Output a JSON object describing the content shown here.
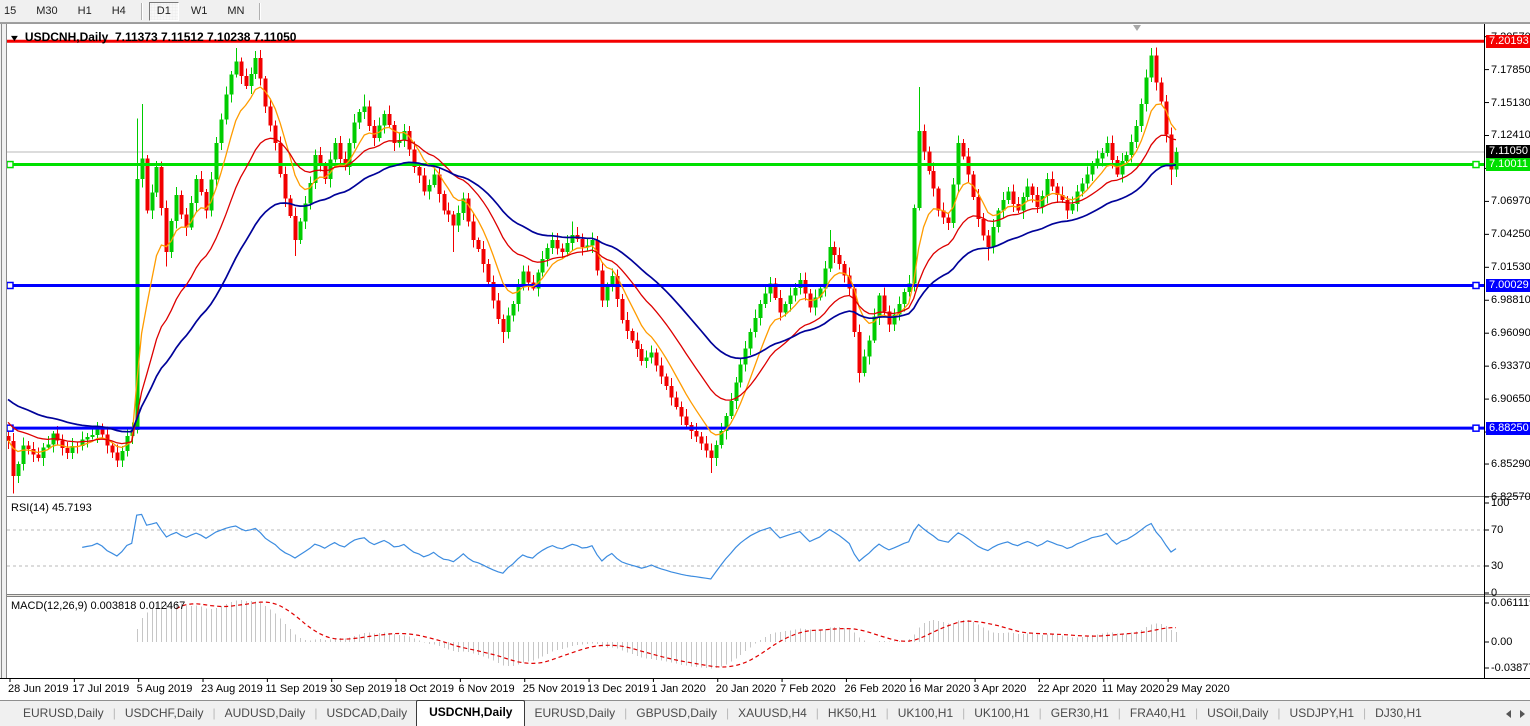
{
  "toolbar": {
    "items": [
      {
        "label": "15",
        "active": false
      },
      {
        "label": "M30",
        "active": false
      },
      {
        "label": "H1",
        "active": false
      },
      {
        "label": "H4",
        "active": false
      },
      {
        "sep": true
      },
      {
        "label": "D1",
        "active": true
      },
      {
        "label": "W1",
        "active": false
      },
      {
        "label": "MN",
        "active": false
      },
      {
        "sep": true
      }
    ]
  },
  "chart_title": {
    "dropdown_icon": "▼",
    "symbol": "USDCNH,Daily",
    "ohlc": "7.11373 7.11512 7.10238 7.11050"
  },
  "chart_data": {
    "type": "candlestick",
    "symbol": "USDCNH",
    "timeframe": "Daily",
    "ohlc_display": {
      "open": "7.11373",
      "high": "7.11512",
      "low": "7.10238",
      "close": "7.11050"
    },
    "price_axis": {
      "ticks": [
        {
          "label": "7.20570",
          "price": 7.2057
        },
        {
          "label": "7.17850",
          "price": 7.1785
        },
        {
          "label": "7.15130",
          "price": 7.1513
        },
        {
          "label": "7.12410",
          "price": 7.1241
        },
        {
          "label": "7.09690",
          "price": 7.0969
        },
        {
          "label": "7.06970",
          "price": 7.0697
        },
        {
          "label": "7.04250",
          "price": 7.0425
        },
        {
          "label": "7.01530",
          "price": 7.0153
        },
        {
          "label": "6.98810",
          "price": 6.9881
        },
        {
          "label": "6.96090",
          "price": 6.9609
        },
        {
          "label": "6.93370",
          "price": 6.9337
        },
        {
          "label": "6.90650",
          "price": 6.9065
        },
        {
          "label": "6.87930",
          "price": 6.8793
        },
        {
          "label": "6.85290",
          "price": 6.8529
        },
        {
          "label": "6.82570",
          "price": 6.8257
        }
      ]
    },
    "hlines": [
      {
        "label": "7.20193",
        "price": 7.20193,
        "color": "#f40000",
        "width": 3,
        "markers": false
      },
      {
        "label": "7.10011",
        "price": 7.10011,
        "color": "#00e000",
        "width": 3,
        "markers": true
      },
      {
        "label": "7.00029",
        "price": 7.00029,
        "color": "#0000ff",
        "width": 3,
        "markers": true
      },
      {
        "label": "6.88250",
        "price": 6.8825,
        "color": "#0000ff",
        "width": 3,
        "markers": true
      }
    ],
    "current_price": {
      "label": "7.11050",
      "price": 7.1105,
      "line_color": "#b8b8b8",
      "label_bg": "#000000",
      "label_fg": "#ffffff"
    },
    "candles": {
      "count": 237,
      "up_color": "#00cc00",
      "down_color": "#f20000",
      "anchors": [
        [
          0,
          6.872
        ],
        [
          1,
          6.843,
          {
            "l": 6.8285
          }
        ],
        [
          3,
          6.868
        ],
        [
          6,
          6.858
        ],
        [
          9,
          6.878
        ],
        [
          12,
          6.862
        ],
        [
          15,
          6.873
        ],
        [
          18,
          6.882
        ],
        [
          20,
          6.868
        ],
        [
          22,
          6.856
        ],
        [
          24,
          6.876
        ],
        [
          25,
          6.881
        ],
        [
          26,
          7.088,
          {
            "h": 7.138
          }
        ],
        [
          27,
          7.105,
          {
            "h": 7.15
          }
        ],
        [
          28,
          7.062
        ],
        [
          30,
          7.098
        ],
        [
          32,
          7.028,
          {
            "l": 7.016
          }
        ],
        [
          34,
          7.075
        ],
        [
          36,
          7.048
        ],
        [
          38,
          7.088
        ],
        [
          40,
          7.062
        ],
        [
          42,
          7.118
        ],
        [
          44,
          7.158
        ],
        [
          46,
          7.185,
          {
            "h": 7.1965
          }
        ],
        [
          48,
          7.165
        ],
        [
          50,
          7.188,
          {
            "h": 7.194
          }
        ],
        [
          52,
          7.148
        ],
        [
          54,
          7.118
        ],
        [
          56,
          7.072
        ],
        [
          58,
          7.038,
          {
            "l": 7.0245
          }
        ],
        [
          60,
          7.068
        ],
        [
          62,
          7.108
        ],
        [
          64,
          7.088
        ],
        [
          66,
          7.118
        ],
        [
          68,
          7.098
        ],
        [
          70,
          7.135
        ],
        [
          72,
          7.148,
          {
            "h": 7.158
          }
        ],
        [
          74,
          7.122
        ],
        [
          76,
          7.142
        ],
        [
          78,
          7.118
        ],
        [
          80,
          7.128
        ],
        [
          82,
          7.098
        ],
        [
          84,
          7.078
        ],
        [
          86,
          7.092
        ],
        [
          88,
          7.062
        ],
        [
          90,
          7.05,
          {
            "l": 7.028
          }
        ],
        [
          92,
          7.072
        ],
        [
          94,
          7.038
        ],
        [
          96,
          7.018
        ],
        [
          98,
          6.988
        ],
        [
          100,
          6.962,
          {
            "l": 6.953
          }
        ],
        [
          102,
          6.985
        ],
        [
          104,
          7.012
        ],
        [
          106,
          6.998
        ],
        [
          108,
          7.022
        ],
        [
          110,
          7.038
        ],
        [
          112,
          7.028
        ],
        [
          114,
          7.042,
          {
            "h": 7.053
          }
        ],
        [
          116,
          7.032
        ],
        [
          118,
          7.038
        ],
        [
          120,
          6.988
        ],
        [
          122,
          7.008
        ],
        [
          124,
          6.972
        ],
        [
          126,
          6.955
        ],
        [
          128,
          6.938
        ],
        [
          130,
          6.945
        ],
        [
          132,
          6.925
        ],
        [
          134,
          6.908
        ],
        [
          136,
          6.892
        ],
        [
          138,
          6.88
        ],
        [
          140,
          6.87
        ],
        [
          142,
          6.858,
          {
            "l": 6.8455
          }
        ],
        [
          144,
          6.88
        ],
        [
          146,
          6.905
        ],
        [
          148,
          6.935
        ],
        [
          150,
          6.962
        ],
        [
          152,
          6.985
        ],
        [
          154,
          7.002
        ],
        [
          156,
          6.978
        ],
        [
          158,
          6.992
        ],
        [
          160,
          7.005
        ],
        [
          162,
          6.982
        ],
        [
          164,
          6.998
        ],
        [
          166,
          7.032,
          {
            "h": 7.046
          }
        ],
        [
          168,
          7.018
        ],
        [
          170,
          6.998
        ],
        [
          172,
          6.928,
          {
            "l": 6.92
          }
        ],
        [
          174,
          6.955
        ],
        [
          176,
          6.992
        ],
        [
          178,
          6.968
        ],
        [
          180,
          6.985
        ],
        [
          182,
          7.002
        ],
        [
          184,
          7.128,
          {
            "h": 7.164
          }
        ],
        [
          186,
          7.095
        ],
        [
          188,
          7.062
        ],
        [
          190,
          7.052
        ],
        [
          192,
          7.118
        ],
        [
          194,
          7.092
        ],
        [
          196,
          7.055
        ],
        [
          198,
          7.032,
          {
            "l": 7.021
          }
        ],
        [
          200,
          7.062
        ],
        [
          202,
          7.078
        ],
        [
          204,
          7.062
        ],
        [
          206,
          7.082
        ],
        [
          208,
          7.065
        ],
        [
          210,
          7.088
        ],
        [
          212,
          7.075
        ],
        [
          214,
          7.062
        ],
        [
          216,
          7.078
        ],
        [
          218,
          7.092
        ],
        [
          220,
          7.105
        ],
        [
          222,
          7.118
        ],
        [
          224,
          7.092
        ],
        [
          226,
          7.108
        ],
        [
          228,
          7.132
        ],
        [
          230,
          7.172
        ],
        [
          231,
          7.19,
          {
            "h": 7.1965
          }
        ],
        [
          232,
          7.168
        ],
        [
          233,
          7.152
        ],
        [
          234,
          7.125
        ],
        [
          235,
          7.096,
          {
            "l": 7.0832
          }
        ],
        [
          236,
          7.1105
        ]
      ]
    },
    "moving_averages": [
      {
        "name": "ma-fast-orange",
        "period": 8,
        "color": "#ff9c00",
        "width": 1.3
      },
      {
        "name": "ma-mid-red",
        "period": 20,
        "color": "#dd0000",
        "width": 1.3
      },
      {
        "name": "ma-slow-navy",
        "period": 40,
        "color": "#000299",
        "width": 1.7
      }
    ]
  },
  "rsi": {
    "label": "RSI(14) 45.7193",
    "period": 14,
    "line_color": "#3c8ce0",
    "levels": [
      {
        "label": "100",
        "value": 100
      },
      {
        "label": "70",
        "value": 70
      },
      {
        "label": "30",
        "value": 30
      },
      {
        "label": "0",
        "value": 0
      }
    ],
    "dashed_levels": [
      70,
      30
    ]
  },
  "macd": {
    "label": "MACD(12,26,9) 0.003818 0.012467",
    "fast": 12,
    "slow": 26,
    "signal": 9,
    "histogram_color": "#c6c6c6",
    "signal_color": "#e00000",
    "scale_labels": [
      {
        "label": "0.061119",
        "pos": "top"
      },
      {
        "label": "0.00",
        "pos": "zero"
      },
      {
        "label": "-0.03877",
        "pos": "bottom"
      }
    ]
  },
  "date_axis": {
    "labels": [
      "28 Jun 2019",
      "17 Jul 2019",
      "5 Aug 2019",
      "23 Aug 2019",
      "11 Sep 2019",
      "30 Sep 2019",
      "18 Oct 2019",
      "6 Nov 2019",
      "25 Nov 2019",
      "13 Dec 2019",
      "1 Jan 2020",
      "20 Jan 2020",
      "7 Feb 2020",
      "26 Feb 2020",
      "16 Mar 2020",
      "3 Apr 2020",
      "22 Apr 2020",
      "11 May 2020",
      "29 May 2020"
    ]
  },
  "tabs": {
    "items": [
      {
        "label": "EURUSD,Daily",
        "active": false
      },
      {
        "label": "USDCHF,Daily",
        "active": false
      },
      {
        "label": "AUDUSD,Daily",
        "active": false
      },
      {
        "label": "USDCAD,Daily",
        "active": false
      },
      {
        "label": "USDCNH,Daily",
        "active": true
      },
      {
        "label": "EURUSD,Daily",
        "active": false
      },
      {
        "label": "GBPUSD,Daily",
        "active": false
      },
      {
        "label": "XAUUSD,H4",
        "active": false
      },
      {
        "label": "HK50,H1",
        "active": false
      },
      {
        "label": "UK100,H1",
        "active": false
      },
      {
        "label": "UK100,H1",
        "active": false
      },
      {
        "label": "GER30,H1",
        "active": false
      },
      {
        "label": "FRA40,H1",
        "active": false
      },
      {
        "label": "USOil,Daily",
        "active": false
      },
      {
        "label": "USDJPY,H1",
        "active": false
      },
      {
        "label": "DJ30,H1",
        "active": false
      }
    ]
  }
}
